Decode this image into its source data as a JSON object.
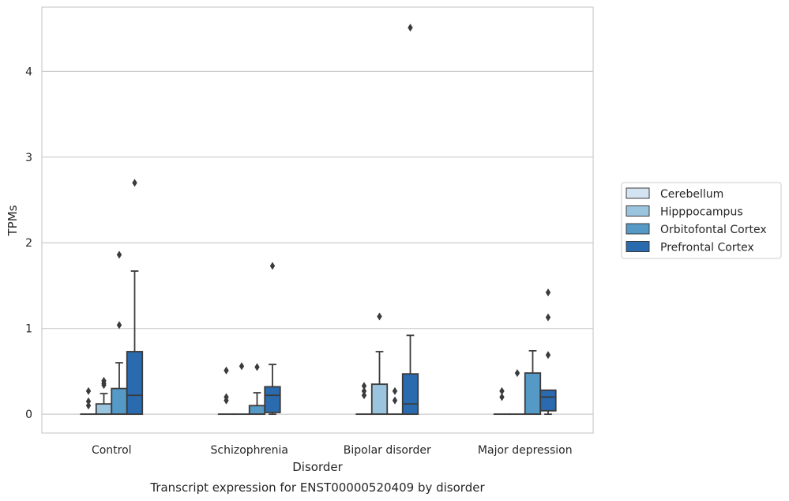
{
  "chart_data": {
    "type": "box",
    "title": "Transcript expression for ENST00000520409 by disorder",
    "xlabel": "Disorder",
    "ylabel": "TPMs",
    "categories": [
      "Control",
      "Schizophrenia",
      "Bipolar disorder",
      "Major depression"
    ],
    "ylim": [
      -0.22,
      4.75
    ],
    "yticks": [
      0,
      1,
      2,
      3,
      4
    ],
    "grid": "horizontal",
    "legend_position": "right",
    "series": [
      {
        "name": "Cerebellum",
        "color": "#d4e3f1",
        "boxes": [
          {
            "min": 0,
            "q1": 0,
            "median": 0,
            "q3": 0,
            "max": 0,
            "outliers": [
              0.1,
              0.15,
              0.27
            ]
          },
          {
            "min": 0,
            "q1": 0,
            "median": 0,
            "q3": 0,
            "max": 0,
            "outliers": [
              0.16,
              0.2,
              0.51
            ]
          },
          {
            "min": 0,
            "q1": 0,
            "median": 0,
            "q3": 0,
            "max": 0,
            "outliers": [
              0.22,
              0.27,
              0.33
            ]
          },
          {
            "min": 0,
            "q1": 0,
            "median": 0,
            "q3": 0,
            "max": 0,
            "outliers": [
              0.2,
              0.27
            ]
          }
        ]
      },
      {
        "name": "Hipppocampus",
        "color": "#9bc4de",
        "boxes": [
          {
            "min": 0,
            "q1": 0,
            "median": 0,
            "q3": 0.12,
            "max": 0.24,
            "outliers": [
              0.34,
              0.36,
              0.39
            ]
          },
          {
            "min": 0,
            "q1": 0,
            "median": 0,
            "q3": 0,
            "max": 0,
            "outliers": [
              0.56
            ]
          },
          {
            "min": 0,
            "q1": 0,
            "median": 0,
            "q3": 0.35,
            "max": 0.73,
            "outliers": [
              1.14
            ]
          },
          {
            "min": 0,
            "q1": 0,
            "median": 0,
            "q3": 0,
            "max": 0,
            "outliers": [
              0.48
            ]
          }
        ]
      },
      {
        "name": "Orbitofontal Cortex",
        "color": "#5599c6",
        "boxes": [
          {
            "min": 0,
            "q1": 0,
            "median": 0,
            "q3": 0.3,
            "max": 0.6,
            "outliers": [
              1.04,
              1.86
            ]
          },
          {
            "min": 0,
            "q1": 0,
            "median": 0,
            "q3": 0.1,
            "max": 0.25,
            "outliers": [
              0.55
            ]
          },
          {
            "min": 0,
            "q1": 0,
            "median": 0,
            "q3": 0,
            "max": 0,
            "outliers": [
              0.16,
              0.27
            ]
          },
          {
            "min": 0,
            "q1": 0,
            "median": 0,
            "q3": 0.48,
            "max": 0.74,
            "outliers": []
          }
        ]
      },
      {
        "name": "Prefrontal Cortex",
        "color": "#2a6aaf",
        "boxes": [
          {
            "min": 0,
            "q1": 0,
            "median": 0.22,
            "q3": 0.73,
            "max": 1.67,
            "outliers": [
              2.7
            ]
          },
          {
            "min": 0,
            "q1": 0.02,
            "median": 0.22,
            "q3": 0.32,
            "max": 0.58,
            "outliers": [
              1.73
            ]
          },
          {
            "min": 0,
            "q1": 0,
            "median": 0.12,
            "q3": 0.47,
            "max": 0.92,
            "outliers": [
              4.51
            ]
          },
          {
            "min": 0,
            "q1": 0.04,
            "median": 0.2,
            "q3": 0.28,
            "max": 0.28,
            "outliers": [
              0.69,
              1.13,
              1.42
            ]
          }
        ]
      }
    ]
  }
}
